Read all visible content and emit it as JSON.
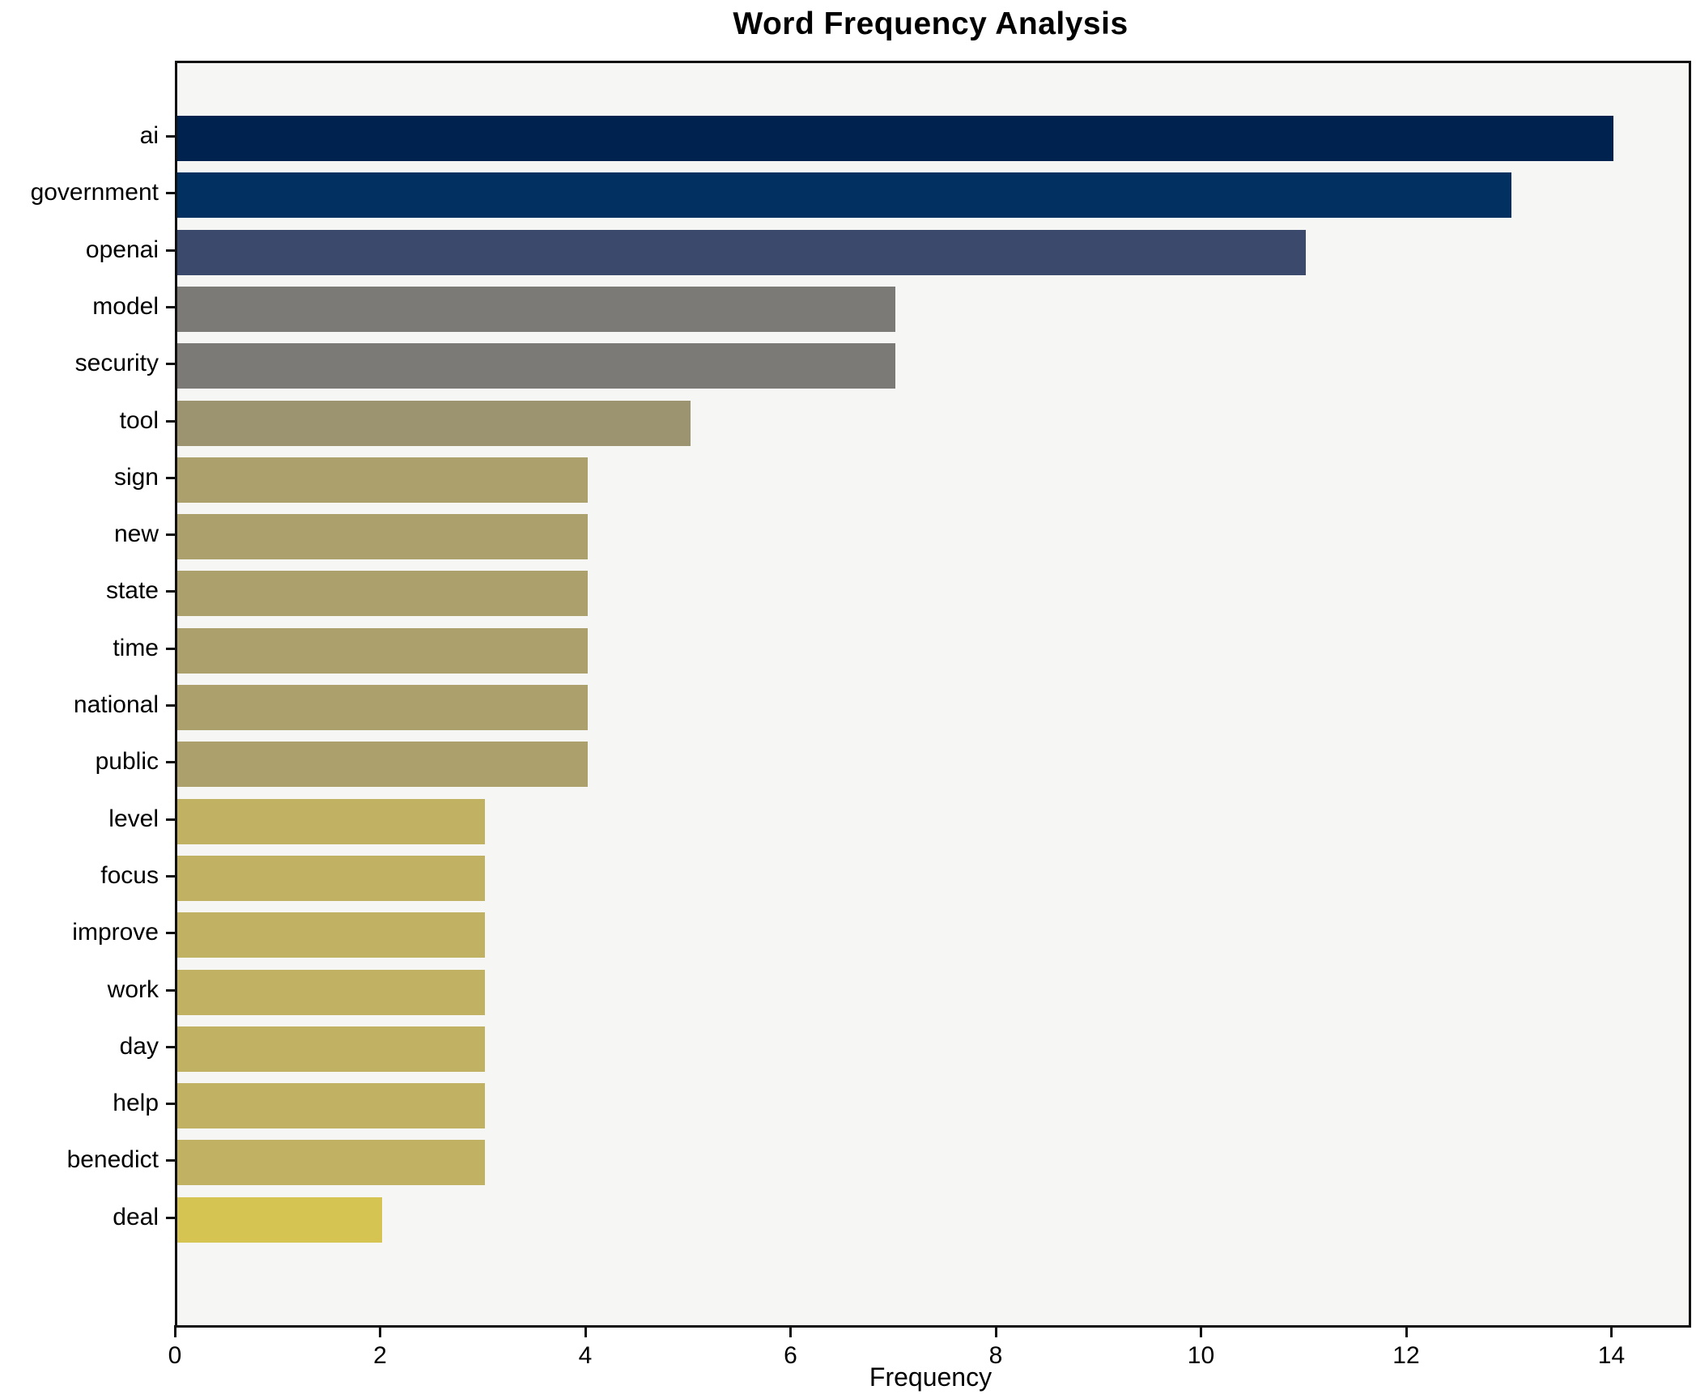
{
  "title": "Word Frequency Analysis",
  "xlabel": "Frequency",
  "chart_data": {
    "type": "bar",
    "orientation": "horizontal",
    "title": "Word Frequency Analysis",
    "xlabel": "Frequency",
    "ylabel": "",
    "categories": [
      "ai",
      "government",
      "openai",
      "model",
      "security",
      "tool",
      "sign",
      "new",
      "state",
      "time",
      "national",
      "public",
      "level",
      "focus",
      "improve",
      "work",
      "day",
      "help",
      "benedict",
      "deal"
    ],
    "values": [
      14,
      13,
      11,
      7,
      7,
      5,
      4,
      4,
      4,
      4,
      4,
      4,
      3,
      3,
      3,
      3,
      3,
      3,
      3,
      2
    ],
    "bar_colors": [
      "#00224e",
      "#023060",
      "#3b4a6c",
      "#7b7a77",
      "#7b7a77",
      "#9c9470",
      "#aca16c",
      "#aca16c",
      "#aca16c",
      "#aca16c",
      "#aca16c",
      "#aca16c",
      "#c0b262",
      "#c0b262",
      "#c0b262",
      "#c0b262",
      "#c0b262",
      "#c0b262",
      "#c0b262",
      "#d5c352"
    ],
    "xlim": [
      0,
      14.73
    ],
    "xticks": [
      0,
      2,
      4,
      6,
      8,
      10,
      12,
      14
    ],
    "grid": false,
    "legend_position": "none",
    "plot_bg": "#f6f6f4",
    "fig_bg": "#ffffff",
    "axis_color": "#111111"
  }
}
